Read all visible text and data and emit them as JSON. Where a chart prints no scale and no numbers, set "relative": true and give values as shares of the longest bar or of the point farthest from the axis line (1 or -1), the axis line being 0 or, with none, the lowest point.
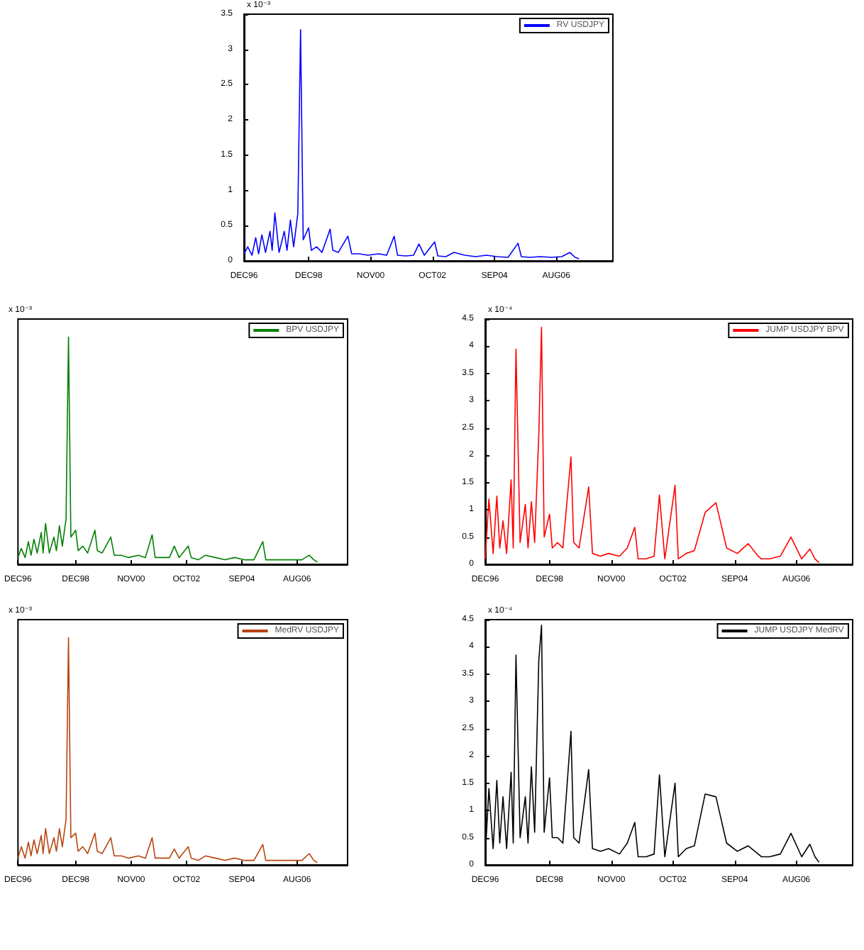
{
  "chart_data": [
    {
      "type": "line",
      "ylabel": "x 10⁻³",
      "legend": "top right",
      "x": [
        "1996-12-01",
        "1997-01-12",
        "1997-03-01",
        "1997-04-12",
        "1997-05-15",
        "1997-06-21",
        "1997-08-01",
        "1997-09-21",
        "1997-10-15",
        "1997-11-15",
        "1998-01-01",
        "1998-03-01",
        "1998-04-01",
        "1998-05-09",
        "1998-06-15",
        "1998-08-01",
        "1998-09-01",
        "1998-10-01",
        "1998-12-01",
        "1999-01-01",
        "1999-03-01",
        "1999-05-01",
        "1999-08-01",
        "1999-09-01",
        "1999-11-01",
        "2000-02-18",
        "2000-04-01",
        "2000-07-01",
        "2000-10-01",
        "2001-02-01",
        "2001-05-01",
        "2001-07-25",
        "2001-09-01",
        "2001-12-01",
        "2002-03-01",
        "2002-05-01",
        "2002-07-01",
        "2002-10-25",
        "2002-12-01",
        "2003-03-01",
        "2003-06-01",
        "2003-10-01",
        "2004-02-01",
        "2004-06-01",
        "2004-10-01",
        "2005-02-01",
        "2005-05-25",
        "2005-07-01",
        "2005-10-01",
        "2006-02-01",
        "2006-06-01",
        "2006-10-01",
        "2007-01-01",
        "2007-03-01",
        "2007-04-15"
      ],
      "series": [
        {
          "name": "RV USDJPY",
          "color": "#0000ff",
          "values": [
            0.1,
            0.2,
            0.08,
            0.33,
            0.1,
            0.37,
            0.12,
            0.42,
            0.15,
            0.68,
            0.12,
            0.42,
            0.15,
            0.58,
            0.2,
            0.67,
            3.28,
            0.3,
            0.47,
            0.15,
            0.2,
            0.12,
            0.45,
            0.15,
            0.12,
            0.35,
            0.1,
            0.1,
            0.08,
            0.1,
            0.08,
            0.35,
            0.08,
            0.07,
            0.08,
            0.24,
            0.08,
            0.27,
            0.07,
            0.06,
            0.12,
            0.08,
            0.06,
            0.08,
            0.06,
            0.05,
            0.25,
            0.06,
            0.05,
            0.06,
            0.05,
            0.06,
            0.12,
            0.05,
            0.03
          ]
        }
      ],
      "xlim": [
        "1996-12-01",
        "2008-05-01"
      ],
      "xticks": [
        {
          "value": "1996-12-01",
          "label": "DEC96"
        },
        {
          "value": "1998-12-01",
          "label": "DEC98"
        },
        {
          "value": "2000-11-01",
          "label": "NOV00"
        },
        {
          "value": "2002-10-01",
          "label": "OCT02"
        },
        {
          "value": "2004-09-01",
          "label": "SEP04"
        },
        {
          "value": "2006-08-01",
          "label": "AUG06"
        }
      ],
      "ylim": [
        0,
        3.5
      ],
      "yticks": [
        0,
        0.5,
        1,
        1.5,
        2,
        2.5,
        3,
        3.5
      ]
    },
    {
      "type": "line",
      "ylabel": "x 10⁻³",
      "legend": "top right",
      "relative": true,
      "tick_labels": "x",
      "x": [
        "1996-12-01",
        "1997-01-12",
        "1997-03-01",
        "1997-04-12",
        "1997-05-15",
        "1997-06-21",
        "1997-08-01",
        "1997-09-21",
        "1997-10-15",
        "1997-11-15",
        "1998-01-01",
        "1998-03-01",
        "1998-04-01",
        "1998-05-09",
        "1998-06-15",
        "1998-08-01",
        "1998-09-01",
        "1998-10-01",
        "1998-12-01",
        "1999-01-01",
        "1999-03-01",
        "1999-05-01",
        "1999-08-01",
        "1999-09-01",
        "1999-11-01",
        "2000-02-18",
        "2000-04-01",
        "2000-07-01",
        "2000-10-01",
        "2001-02-01",
        "2001-05-01",
        "2001-07-25",
        "2001-09-01",
        "2001-12-01",
        "2002-03-01",
        "2002-05-01",
        "2002-07-01",
        "2002-10-25",
        "2002-12-01",
        "2003-03-01",
        "2003-06-01",
        "2003-10-01",
        "2004-02-01",
        "2004-06-01",
        "2004-10-01",
        "2005-02-01",
        "2005-05-25",
        "2005-07-01",
        "2005-10-01",
        "2006-02-01",
        "2006-06-01",
        "2006-10-01",
        "2007-01-01",
        "2007-03-01",
        "2007-04-15"
      ],
      "series": [
        {
          "name": "BPV USDJPY",
          "color": "#008000",
          "values": [
            0.03,
            0.07,
            0.03,
            0.1,
            0.04,
            0.11,
            0.05,
            0.14,
            0.05,
            0.18,
            0.05,
            0.12,
            0.06,
            0.17,
            0.08,
            0.2,
            1,
            0.12,
            0.15,
            0.06,
            0.08,
            0.05,
            0.15,
            0.06,
            0.05,
            0.12,
            0.04,
            0.04,
            0.03,
            0.04,
            0.03,
            0.13,
            0.03,
            0.03,
            0.03,
            0.08,
            0.03,
            0.08,
            0.03,
            0.02,
            0.04,
            0.03,
            0.02,
            0.03,
            0.02,
            0.02,
            0.1,
            0.02,
            0.02,
            0.02,
            0.02,
            0.02,
            0.04,
            0.02,
            0.01
          ]
        }
      ],
      "xlim": [
        "1996-12-01",
        "2008-05-01"
      ],
      "xticks": [
        {
          "value": "1996-12-01",
          "label": "DEC96"
        },
        {
          "value": "1998-12-01",
          "label": "DEC98"
        },
        {
          "value": "2000-11-01",
          "label": "NOV00"
        },
        {
          "value": "2002-10-01",
          "label": "OCT02"
        },
        {
          "value": "2004-09-01",
          "label": "SEP04"
        },
        {
          "value": "2006-08-01",
          "label": "AUG06"
        }
      ]
    },
    {
      "type": "line",
      "ylabel": "x 10⁻⁴",
      "legend": "top right",
      "x": [
        "1996-12-01",
        "1997-01-12",
        "1997-03-01",
        "1997-04-12",
        "1997-05-15",
        "1997-06-21",
        "1997-08-01",
        "1997-09-21",
        "1997-10-15",
        "1997-11-15",
        "1998-01-01",
        "1998-03-01",
        "1998-04-01",
        "1998-05-09",
        "1998-06-15",
        "1998-08-01",
        "1998-09-01",
        "1998-10-01",
        "1998-12-01",
        "1999-01-01",
        "1999-03-01",
        "1999-05-01",
        "1999-08-01",
        "1999-09-01",
        "1999-11-01",
        "2000-02-18",
        "2000-04-01",
        "2000-07-01",
        "2000-10-01",
        "2001-02-01",
        "2001-05-01",
        "2001-07-25",
        "2001-09-01",
        "2001-12-01",
        "2002-03-01",
        "2002-05-01",
        "2002-07-01",
        "2002-10-25",
        "2002-12-01",
        "2003-03-01",
        "2003-06-01",
        "2003-10-01",
        "2004-02-01",
        "2004-06-01",
        "2004-10-01",
        "2005-02-01",
        "2005-05-25",
        "2005-07-01",
        "2005-10-01",
        "2006-02-01",
        "2006-06-01",
        "2006-10-01",
        "2007-01-01",
        "2007-03-01",
        "2007-04-15"
      ],
      "series": [
        {
          "name": "JUMP USDJPY BPV",
          "color": "#ff0000",
          "values": [
            0.1,
            1.2,
            0.2,
            1.25,
            0.3,
            0.8,
            0.2,
            1.55,
            0.3,
            3.95,
            0.4,
            1.1,
            0.3,
            1.15,
            0.4,
            2.38,
            4.35,
            0.5,
            0.92,
            0.3,
            0.4,
            0.3,
            1.97,
            0.4,
            0.3,
            1.42,
            0.2,
            0.15,
            0.2,
            0.15,
            0.3,
            0.68,
            0.1,
            0.1,
            0.15,
            1.27,
            0.1,
            1.45,
            0.1,
            0.2,
            0.25,
            0.95,
            1.13,
            0.3,
            0.2,
            0.38,
            0.15,
            0.1,
            0.1,
            0.15,
            0.5,
            0.1,
            0.28,
            0.1,
            0.03
          ]
        }
      ],
      "xlim": [
        "1996-12-01",
        "2008-05-01"
      ],
      "xticks": [
        {
          "value": "1996-12-01",
          "label": "DEC96"
        },
        {
          "value": "1998-12-01",
          "label": "DEC98"
        },
        {
          "value": "2000-11-01",
          "label": "NOV00"
        },
        {
          "value": "2002-10-01",
          "label": "OCT02"
        },
        {
          "value": "2004-09-01",
          "label": "SEP04"
        },
        {
          "value": "2006-08-01",
          "label": "AUG06"
        }
      ],
      "ylim": [
        0,
        4.5
      ],
      "yticks": [
        0,
        0.5,
        1,
        1.5,
        2,
        2.5,
        3,
        3.5,
        4,
        4.5
      ]
    },
    {
      "type": "line",
      "ylabel": "x 10⁻³",
      "legend": "top right",
      "relative": true,
      "tick_labels": "x",
      "x": [
        "1996-12-01",
        "1997-01-12",
        "1997-03-01",
        "1997-04-12",
        "1997-05-15",
        "1997-06-21",
        "1997-08-01",
        "1997-09-21",
        "1997-10-15",
        "1997-11-15",
        "1998-01-01",
        "1998-03-01",
        "1998-04-01",
        "1998-05-09",
        "1998-06-15",
        "1998-08-01",
        "1998-09-01",
        "1998-10-01",
        "1998-12-01",
        "1999-01-01",
        "1999-03-01",
        "1999-05-01",
        "1999-08-01",
        "1999-09-01",
        "1999-11-01",
        "2000-02-18",
        "2000-04-01",
        "2000-07-01",
        "2000-10-01",
        "2001-02-01",
        "2001-05-01",
        "2001-07-25",
        "2001-09-01",
        "2001-12-01",
        "2002-03-01",
        "2002-05-01",
        "2002-07-01",
        "2002-10-25",
        "2002-12-01",
        "2003-03-01",
        "2003-06-01",
        "2003-10-01",
        "2004-02-01",
        "2004-06-01",
        "2004-10-01",
        "2005-02-01",
        "2005-05-25",
        "2005-07-01",
        "2005-10-01",
        "2006-02-01",
        "2006-06-01",
        "2006-10-01",
        "2007-01-01",
        "2007-03-01",
        "2007-04-15"
      ],
      "series": [
        {
          "name": "MedRV USDJPY",
          "color": "#b8440f",
          "values": [
            0.03,
            0.08,
            0.03,
            0.1,
            0.04,
            0.11,
            0.05,
            0.13,
            0.05,
            0.16,
            0.05,
            0.12,
            0.06,
            0.16,
            0.08,
            0.2,
            1,
            0.12,
            0.14,
            0.06,
            0.08,
            0.05,
            0.14,
            0.06,
            0.05,
            0.12,
            0.04,
            0.04,
            0.03,
            0.04,
            0.03,
            0.12,
            0.03,
            0.03,
            0.03,
            0.07,
            0.03,
            0.08,
            0.03,
            0.02,
            0.04,
            0.03,
            0.02,
            0.03,
            0.02,
            0.02,
            0.09,
            0.02,
            0.02,
            0.02,
            0.02,
            0.02,
            0.05,
            0.02,
            0.01
          ]
        }
      ],
      "xlim": [
        "1996-12-01",
        "2008-05-01"
      ],
      "xticks": [
        {
          "value": "1996-12-01",
          "label": "DEC96"
        },
        {
          "value": "1998-12-01",
          "label": "DEC98"
        },
        {
          "value": "2000-11-01",
          "label": "NOV00"
        },
        {
          "value": "2002-10-01",
          "label": "OCT02"
        },
        {
          "value": "2004-09-01",
          "label": "SEP04"
        },
        {
          "value": "2006-08-01",
          "label": "AUG06"
        }
      ]
    },
    {
      "type": "line",
      "ylabel": "x 10⁻⁴",
      "legend": "top right",
      "x": [
        "1996-12-01",
        "1997-01-12",
        "1997-03-01",
        "1997-04-12",
        "1997-05-15",
        "1997-06-21",
        "1997-08-01",
        "1997-09-21",
        "1997-10-15",
        "1997-11-15",
        "1998-01-01",
        "1998-03-01",
        "1998-04-01",
        "1998-05-09",
        "1998-06-15",
        "1998-08-01",
        "1998-09-01",
        "1998-10-01",
        "1998-12-01",
        "1999-01-01",
        "1999-03-01",
        "1999-05-01",
        "1999-08-01",
        "1999-09-01",
        "1999-11-01",
        "2000-02-18",
        "2000-04-01",
        "2000-07-01",
        "2000-10-01",
        "2001-02-01",
        "2001-05-01",
        "2001-07-25",
        "2001-09-01",
        "2001-12-01",
        "2002-03-01",
        "2002-05-01",
        "2002-07-01",
        "2002-10-25",
        "2002-12-01",
        "2003-03-01",
        "2003-06-01",
        "2003-10-01",
        "2004-02-01",
        "2004-06-01",
        "2004-10-01",
        "2005-02-01",
        "2005-05-25",
        "2005-07-01",
        "2005-10-01",
        "2006-02-01",
        "2006-06-01",
        "2006-10-01",
        "2007-01-01",
        "2007-03-01",
        "2007-04-15"
      ],
      "series": [
        {
          "name": "JUMP USDJPY MedRV",
          "color": "#000000",
          "values": [
            0.15,
            1.4,
            0.3,
            1.55,
            0.4,
            1.25,
            0.3,
            1.7,
            0.4,
            3.85,
            0.5,
            1.25,
            0.4,
            1.8,
            0.6,
            3.75,
            4.4,
            0.6,
            1.6,
            0.5,
            0.5,
            0.4,
            2.45,
            0.5,
            0.4,
            1.75,
            0.3,
            0.25,
            0.3,
            0.2,
            0.4,
            0.78,
            0.15,
            0.15,
            0.2,
            1.65,
            0.15,
            1.5,
            0.15,
            0.3,
            0.35,
            1.3,
            1.25,
            0.4,
            0.25,
            0.35,
            0.2,
            0.15,
            0.15,
            0.2,
            0.58,
            0.15,
            0.38,
            0.15,
            0.05
          ]
        }
      ],
      "xlim": [
        "1996-12-01",
        "2008-05-01"
      ],
      "xticks": [
        {
          "value": "1996-12-01",
          "label": "DEC96"
        },
        {
          "value": "1998-12-01",
          "label": "DEC98"
        },
        {
          "value": "2000-11-01",
          "label": "NOV00"
        },
        {
          "value": "2002-10-01",
          "label": "OCT02"
        },
        {
          "value": "2004-09-01",
          "label": "SEP04"
        },
        {
          "value": "2006-08-01",
          "label": "AUG06"
        }
      ],
      "ylim": [
        0,
        4.5
      ],
      "yticks": [
        0,
        0.5,
        1,
        1.5,
        2,
        2.5,
        3,
        3.5,
        4,
        4.5
      ]
    }
  ]
}
